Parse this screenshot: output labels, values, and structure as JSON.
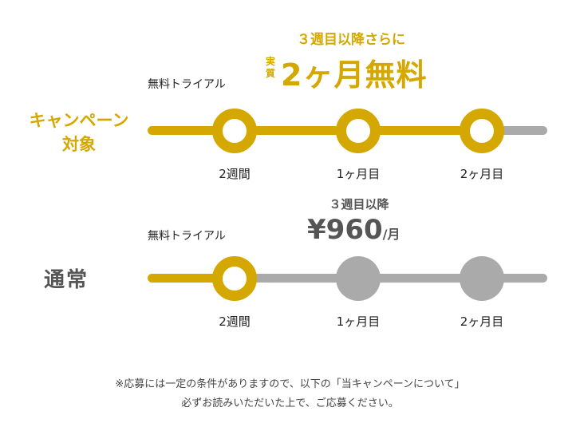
{
  "campaign": {
    "title_line1": "キャンペーン",
    "title_line2": "対象",
    "trial_label": "無料トライアル",
    "promo_sub": "３週目以降さらに",
    "promo_prefix_1": "実",
    "promo_prefix_2": "質",
    "promo_main": "2ヶ月無料",
    "nodes": [
      "2週間",
      "1ヶ月目",
      "2ヶ月目"
    ]
  },
  "regular": {
    "title": "通常",
    "trial_label": "無料トライアル",
    "price_sub": "３週目以降",
    "price_value": "¥960",
    "price_unit": "/月",
    "nodes": [
      "2週間",
      "1ヶ月目",
      "2ヶ月目"
    ]
  },
  "note": {
    "line1": "※応募には一定の条件がありますので、以下の「当キャンペーンについて」",
    "line2": "必ずお読みいただいた上で、ご応募ください。"
  },
  "colors": {
    "accent": "#d4a800",
    "inactive": "#aaaaaa",
    "text": "#222222"
  }
}
